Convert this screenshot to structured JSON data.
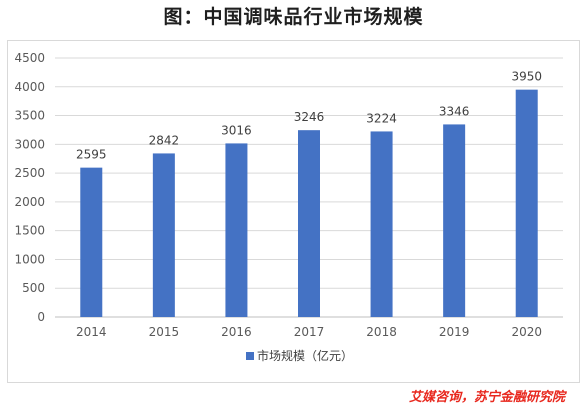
{
  "title": "图：中国调味品行业市场规模",
  "source": "艾媒咨询，苏宁金融研究院",
  "chart_data": {
    "type": "bar",
    "categories": [
      "2014",
      "2015",
      "2016",
      "2017",
      "2018",
      "2019",
      "2020"
    ],
    "series": [
      {
        "name": "市场规模（亿元）",
        "values": [
          2595,
          2842,
          3016,
          3246,
          3224,
          3346,
          3950
        ]
      }
    ],
    "data_labels": [
      "2595",
      "2842",
      "3016",
      "3246",
      "3224",
      "3346",
      "3950"
    ],
    "ylim": [
      0,
      4500
    ],
    "yticks": [
      0,
      500,
      1000,
      1500,
      2000,
      2500,
      3000,
      3500,
      4000,
      4500
    ],
    "grid": true,
    "legend_position": "bottom",
    "bar_color": "#4472c4"
  }
}
